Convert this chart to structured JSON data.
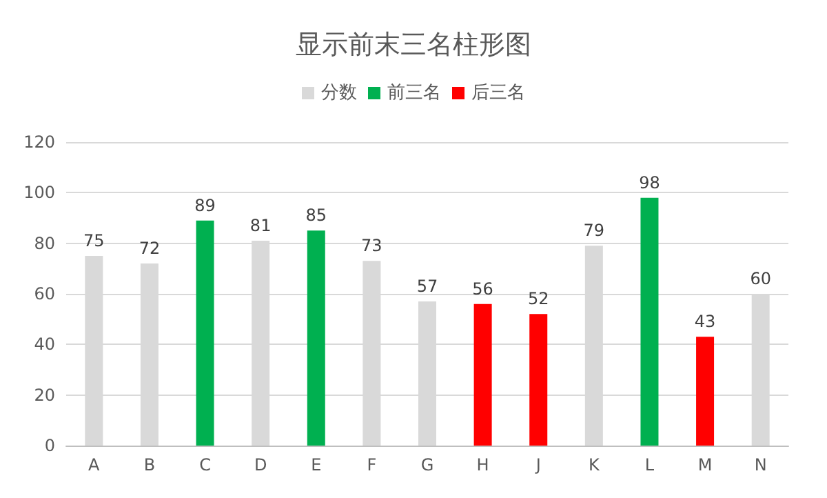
{
  "chart_data": {
    "type": "bar",
    "title": "显示前末三名柱形图",
    "categories": [
      "A",
      "B",
      "C",
      "D",
      "E",
      "F",
      "G",
      "H",
      "J",
      "K",
      "L",
      "M",
      "N"
    ],
    "series": [
      {
        "name": "分数",
        "color": "#d9d9d9",
        "values": [
          75,
          72,
          null,
          81,
          null,
          73,
          57,
          null,
          null,
          79,
          null,
          null,
          60
        ]
      },
      {
        "name": "前三名",
        "color": "#00b050",
        "values": [
          null,
          null,
          89,
          null,
          85,
          null,
          null,
          null,
          null,
          null,
          98,
          null,
          null
        ]
      },
      {
        "name": "后三名",
        "color": "#ff0000",
        "values": [
          null,
          null,
          null,
          null,
          null,
          null,
          null,
          56,
          52,
          null,
          null,
          43,
          null
        ]
      }
    ],
    "stacked": true,
    "ylim": [
      0,
      120
    ],
    "yticks": [
      0,
      20,
      40,
      60,
      80,
      100,
      120
    ],
    "grid": "y",
    "legend": "top",
    "data_labels": true
  }
}
